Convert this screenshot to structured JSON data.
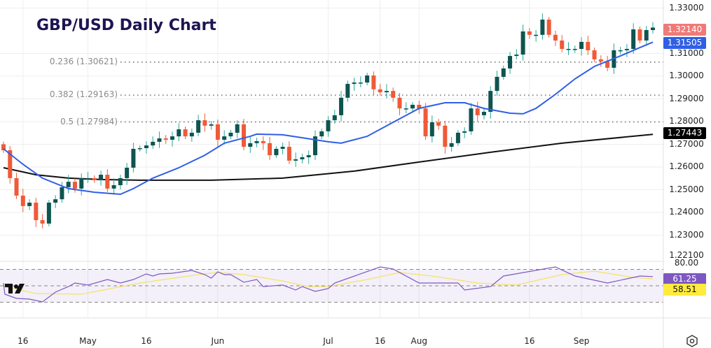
{
  "title": "GBP/USD Daily Chart",
  "colors": {
    "up_body": "#0e5450",
    "up_wick": "#26a69a",
    "down": "#ef5a38",
    "ma_fast": "#2f5fe6",
    "ma_slow": "#111111",
    "rsi": "#7e57c2",
    "rsi_ma": "#f5e26a",
    "fib": "#888888",
    "grid": "#eeeeee"
  },
  "chart_data": {
    "type": "candlestick",
    "title": "GBP/USD Daily Chart",
    "ylim": [
      1.221,
      1.334
    ],
    "price_ticks": [
      "1.33000",
      "1.31000",
      "1.30000",
      "1.29000",
      "1.28000",
      "1.27000",
      "1.26000",
      "1.25000",
      "1.24000",
      "1.23000",
      "1.22100"
    ],
    "x_ticks": [
      {
        "label": "16",
        "index": 3
      },
      {
        "label": "May",
        "index": 13
      },
      {
        "label": "16",
        "index": 22
      },
      {
        "label": "Jun",
        "index": 33
      },
      {
        "label": "Jul",
        "index": 50
      },
      {
        "label": "16",
        "index": 58
      },
      {
        "label": "Aug",
        "index": 64
      },
      {
        "label": "16",
        "index": 81
      },
      {
        "label": "Sep",
        "index": 89
      }
    ],
    "first_open": 1.27,
    "closes": [
      1.2674,
      1.2551,
      1.2474,
      1.2428,
      1.2443,
      1.2366,
      1.2351,
      1.2443,
      1.2458,
      1.2511,
      1.2535,
      1.2505,
      1.2551,
      1.2551,
      1.2542,
      1.2566,
      1.2505,
      1.252,
      1.2551,
      1.2597,
      1.268,
      1.2683,
      1.2695,
      1.2711,
      1.2726,
      1.272,
      1.2735,
      1.2766,
      1.2735,
      1.2751,
      1.2806,
      1.2782,
      1.2788,
      1.272,
      1.2735,
      1.2751,
      1.2788,
      1.2689,
      1.2705,
      1.2714,
      1.2705,
      1.2652,
      1.268,
      1.2689,
      1.2628,
      1.2634,
      1.2643,
      1.2652,
      1.2735,
      1.2757,
      1.2806,
      1.2828,
      1.2905,
      1.2966,
      1.2972,
      1.2972,
      1.3003,
      1.2942,
      1.2929,
      1.2935,
      1.2905,
      1.2858,
      1.2858,
      1.2874,
      1.2858,
      1.2735,
      1.2797,
      1.2782,
      1.2689,
      1.2705,
      1.2751,
      1.2757,
      1.2858,
      1.2828,
      1.2843,
      1.2935,
      1.2997,
      1.3034,
      1.3089,
      1.3095,
      1.3197,
      1.3182,
      1.3182,
      1.3249,
      1.3182,
      1.3157,
      1.312,
      1.312,
      1.312,
      1.3151,
      1.3114,
      1.3074,
      1.3065,
      1.3037,
      1.3114,
      1.3114,
      1.312,
      1.3206,
      1.3157,
      1.3203,
      1.3214
    ],
    "ma_fast": [
      [
        0,
        1.268
      ],
      [
        3,
        1.2612
      ],
      [
        6,
        1.2551
      ],
      [
        10,
        1.2505
      ],
      [
        14,
        1.2489
      ],
      [
        18,
        1.248
      ],
      [
        20,
        1.2505
      ],
      [
        23,
        1.2551
      ],
      [
        27,
        1.2597
      ],
      [
        31,
        1.2652
      ],
      [
        34,
        1.2705
      ],
      [
        38,
        1.2735
      ],
      [
        39,
        1.2745
      ],
      [
        43,
        1.2742
      ],
      [
        46,
        1.2729
      ],
      [
        50,
        1.2711
      ],
      [
        52,
        1.2705
      ],
      [
        56,
        1.2735
      ],
      [
        60,
        1.2797
      ],
      [
        64,
        1.2858
      ],
      [
        68,
        1.2883
      ],
      [
        71,
        1.2883
      ],
      [
        74,
        1.2858
      ],
      [
        78,
        1.2837
      ],
      [
        80,
        1.2834
      ],
      [
        82,
        1.2858
      ],
      [
        85,
        1.292
      ],
      [
        88,
        1.2988
      ],
      [
        91,
        1.3043
      ],
      [
        95,
        1.3089
      ],
      [
        98,
        1.3126
      ],
      [
        100,
        1.315
      ]
    ],
    "ma_slow": [
      [
        0,
        1.2597
      ],
      [
        5,
        1.2566
      ],
      [
        10,
        1.2551
      ],
      [
        15,
        1.2545
      ],
      [
        21,
        1.2542
      ],
      [
        32,
        1.2542
      ],
      [
        43,
        1.2551
      ],
      [
        54,
        1.2582
      ],
      [
        64,
        1.2622
      ],
      [
        75,
        1.2665
      ],
      [
        86,
        1.2705
      ],
      [
        100,
        1.2744
      ]
    ],
    "fib_levels": [
      {
        "label": "0.236 (1.30621)",
        "price": 1.30621
      },
      {
        "label": "0.382 (1.29163)",
        "price": 1.29163
      },
      {
        "label": "0.5 (1.27984)",
        "price": 1.27984
      }
    ],
    "last_price": {
      "label": "1.32140"
    },
    "ma_fast_last": {
      "label": "1.31505"
    },
    "ma_slow_last": {
      "label": "1.27443"
    },
    "rsi": {
      "levels": [
        70,
        50,
        30
      ],
      "axis_label": "80.00",
      "value_label": "61.25",
      "ma_label": "58.51",
      "values": [
        [
          0,
          53.4
        ],
        [
          0.2,
          39.8
        ],
        [
          2,
          34.7
        ],
        [
          4,
          33.8
        ],
        [
          6,
          30.4
        ],
        [
          8,
          42.3
        ],
        [
          10,
          49.1
        ],
        [
          11,
          53.4
        ],
        [
          13,
          50.9
        ],
        [
          16,
          57.7
        ],
        [
          18,
          53.4
        ],
        [
          20,
          57.7
        ],
        [
          22,
          64.5
        ],
        [
          23,
          61.9
        ],
        [
          24,
          64.5
        ],
        [
          26,
          65.3
        ],
        [
          29,
          68.7
        ],
        [
          31,
          63.6
        ],
        [
          32,
          59.4
        ],
        [
          33,
          67.0
        ],
        [
          34,
          63.6
        ],
        [
          35,
          63.6
        ],
        [
          37,
          54.3
        ],
        [
          39,
          57.7
        ],
        [
          40,
          49.1
        ],
        [
          43,
          50.9
        ],
        [
          45,
          44.9
        ],
        [
          46,
          49.1
        ],
        [
          48,
          43.2
        ],
        [
          50,
          46.6
        ],
        [
          51,
          53.4
        ],
        [
          58,
          73.0
        ],
        [
          60,
          70.4
        ],
        [
          64,
          53.4
        ],
        [
          70,
          53.4
        ],
        [
          71,
          44.9
        ],
        [
          75,
          49.1
        ],
        [
          77,
          61.9
        ],
        [
          85,
          73.0
        ],
        [
          88,
          61.9
        ],
        [
          93,
          53.4
        ],
        [
          98,
          61.9
        ],
        [
          100,
          61.25
        ]
      ],
      "ma_values": [
        [
          0,
          49.1
        ],
        [
          5,
          40.6
        ],
        [
          12,
          39.8
        ],
        [
          21,
          53.4
        ],
        [
          30,
          63.6
        ],
        [
          33,
          66.2
        ],
        [
          37,
          63.6
        ],
        [
          43,
          55.9
        ],
        [
          47,
          49.1
        ],
        [
          50,
          49.1
        ],
        [
          56,
          57.7
        ],
        [
          61,
          66.2
        ],
        [
          66,
          61.9
        ],
        [
          73,
          53.4
        ],
        [
          79,
          50.9
        ],
        [
          86,
          63.6
        ],
        [
          91,
          67.9
        ],
        [
          97,
          60.2
        ],
        [
          100,
          58.51
        ]
      ]
    }
  }
}
